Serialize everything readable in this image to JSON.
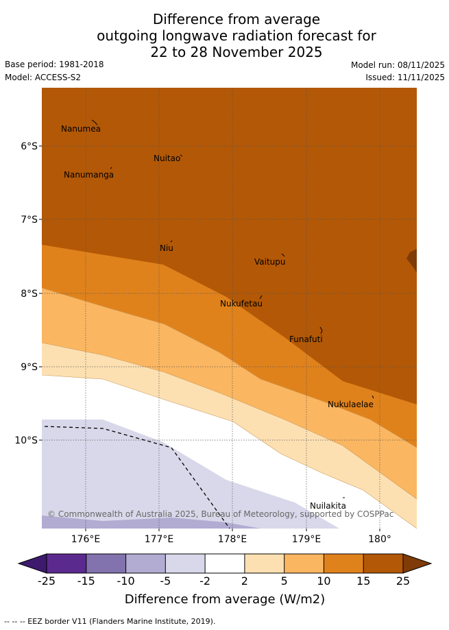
{
  "title": {
    "line1": "Difference from average",
    "line2": "outgoing longwave radiation forecast for",
    "line3": "22 to 28 November 2025"
  },
  "meta": {
    "base_period": "Base period: 1981-2018",
    "model": "Model: ACCESS-S2",
    "model_run": "Model run: 08/11/2025",
    "issued": "Issued: 11/11/2025"
  },
  "map": {
    "lat_labels": [
      "6°S",
      "7°S",
      "8°S",
      "9°S",
      "10°S"
    ],
    "lon_labels": [
      "176°E",
      "177°E",
      "178°E",
      "179°E",
      "180°"
    ],
    "places": [
      "Nanumea",
      "Nuitao",
      "Nanumanga",
      "Niu",
      "Vaitupu",
      "Nukufetau",
      "Funafuti",
      "Nukulaelae",
      "Nuilakita"
    ],
    "copyright": "© Commonwealth of Australia 2025, Bureau of Meteorology, supported by COSPPac"
  },
  "colorbar": {
    "ticks": [
      "-25",
      "-15",
      "-10",
      "-5",
      "-2",
      "2",
      "5",
      "10",
      "15",
      "25"
    ],
    "colors": [
      "#3d1a6e",
      "#5b2a8f",
      "#8272ad",
      "#b2abd2",
      "#d8d8ea",
      "#ffffff",
      "#fde0b2",
      "#fbb661",
      "#e0821c",
      "#b35806",
      "#7f3b08"
    ],
    "title": "Difference from average (W/m2)"
  },
  "footer": "-- -- -- EEZ border V11 (Flanders Marine Institute, 2019)."
}
